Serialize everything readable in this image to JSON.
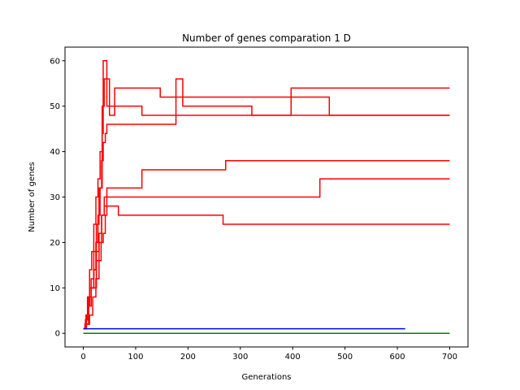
{
  "chart_data": {
    "type": "line",
    "title": "Number of genes comparation 1 D",
    "xlabel": "Generations",
    "ylabel": "Number of genes",
    "xlim": [
      -35,
      735
    ],
    "ylim": [
      -3,
      63
    ],
    "xticks": [
      0,
      100,
      200,
      300,
      400,
      500,
      600,
      700
    ],
    "yticks": [
      0,
      10,
      20,
      30,
      40,
      50,
      60
    ],
    "grid": false,
    "legend": "none",
    "series": [
      {
        "color": "#ff0000",
        "step": true,
        "points": [
          [
            0,
            1
          ],
          [
            3,
            2
          ],
          [
            6,
            4
          ],
          [
            9,
            6
          ],
          [
            12,
            10
          ],
          [
            16,
            10
          ],
          [
            20,
            14
          ],
          [
            24,
            20
          ],
          [
            28,
            26
          ],
          [
            32,
            32
          ],
          [
            36,
            44
          ],
          [
            38,
            60
          ],
          [
            44,
            60
          ],
          [
            45,
            50
          ],
          [
            110,
            50
          ],
          [
            112,
            48
          ],
          [
            700,
            48
          ]
        ]
      },
      {
        "color": "#ff0000",
        "step": true,
        "points": [
          [
            0,
            1
          ],
          [
            4,
            3
          ],
          [
            8,
            8
          ],
          [
            12,
            14
          ],
          [
            16,
            18
          ],
          [
            20,
            24
          ],
          [
            24,
            30
          ],
          [
            28,
            34
          ],
          [
            32,
            40
          ],
          [
            36,
            50
          ],
          [
            40,
            56
          ],
          [
            48,
            56
          ],
          [
            50,
            48
          ],
          [
            60,
            54
          ],
          [
            145,
            54
          ],
          [
            147,
            52
          ],
          [
            468,
            52
          ],
          [
            470,
            48
          ],
          [
            700,
            48
          ]
        ]
      },
      {
        "color": "#ff0000",
        "step": true,
        "points": [
          [
            0,
            1
          ],
          [
            5,
            4
          ],
          [
            10,
            8
          ],
          [
            15,
            12
          ],
          [
            20,
            18
          ],
          [
            25,
            24
          ],
          [
            30,
            32
          ],
          [
            35,
            38
          ],
          [
            38,
            42
          ],
          [
            42,
            44
          ],
          [
            45,
            46
          ],
          [
            175,
            46
          ],
          [
            177,
            56
          ],
          [
            188,
            56
          ],
          [
            190,
            50
          ],
          [
            320,
            50
          ],
          [
            322,
            48
          ],
          [
            395,
            48
          ],
          [
            397,
            54
          ],
          [
            700,
            54
          ]
        ]
      },
      {
        "color": "#ff0000",
        "step": true,
        "points": [
          [
            0,
            1
          ],
          [
            5,
            2
          ],
          [
            10,
            6
          ],
          [
            15,
            10
          ],
          [
            25,
            16
          ],
          [
            30,
            20
          ],
          [
            35,
            26
          ],
          [
            40,
            30
          ],
          [
            45,
            32
          ],
          [
            110,
            32
          ],
          [
            112,
            36
          ],
          [
            270,
            36
          ],
          [
            272,
            38
          ],
          [
            700,
            38
          ]
        ]
      },
      {
        "color": "#ff0000",
        "step": true,
        "points": [
          [
            0,
            1
          ],
          [
            5,
            3
          ],
          [
            10,
            6
          ],
          [
            15,
            10
          ],
          [
            20,
            14
          ],
          [
            25,
            18
          ],
          [
            30,
            22
          ],
          [
            35,
            26
          ],
          [
            40,
            28
          ],
          [
            45,
            30
          ],
          [
            450,
            30
          ],
          [
            452,
            34
          ],
          [
            700,
            34
          ]
        ]
      },
      {
        "color": "#ff0000",
        "step": true,
        "points": [
          [
            0,
            1
          ],
          [
            6,
            2
          ],
          [
            12,
            4
          ],
          [
            18,
            8
          ],
          [
            24,
            12
          ],
          [
            30,
            16
          ],
          [
            34,
            20
          ],
          [
            38,
            22
          ],
          [
            42,
            26
          ],
          [
            45,
            28
          ],
          [
            65,
            28
          ],
          [
            67,
            26
          ],
          [
            265,
            26
          ],
          [
            267,
            24
          ],
          [
            700,
            24
          ]
        ]
      },
      {
        "color": "#0000ff",
        "step": true,
        "points": [
          [
            0,
            1
          ],
          [
            615,
            1
          ]
        ]
      },
      {
        "color": "#008000",
        "step": true,
        "points": [
          [
            0,
            0
          ],
          [
            700,
            0
          ]
        ]
      }
    ]
  }
}
